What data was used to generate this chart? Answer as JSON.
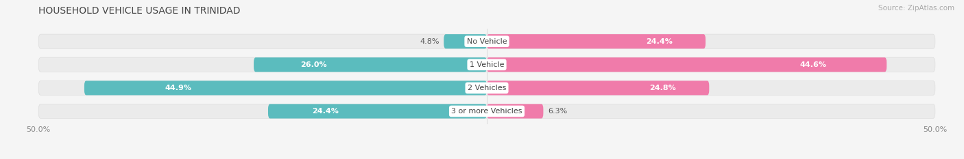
{
  "title": "HOUSEHOLD VEHICLE USAGE IN TRINIDAD",
  "source": "Source: ZipAtlas.com",
  "categories": [
    "No Vehicle",
    "1 Vehicle",
    "2 Vehicles",
    "3 or more Vehicles"
  ],
  "owner_values": [
    4.8,
    26.0,
    44.9,
    24.4
  ],
  "renter_values": [
    24.4,
    44.6,
    24.8,
    6.3
  ],
  "owner_color": "#5bbcbe",
  "renter_color": "#f07baa",
  "bar_bg_color": "#ebebeb",
  "xlim": [
    -50,
    50
  ],
  "x_ticks": [
    -50,
    50
  ],
  "x_tick_labels": [
    "50.0%",
    "50.0%"
  ],
  "title_fontsize": 10,
  "source_fontsize": 7.5,
  "label_fontsize": 8,
  "cat_fontsize": 8,
  "axis_fontsize": 8,
  "bar_height": 0.62,
  "background_color": "#f5f5f5",
  "bar_bg_rounding": 5
}
